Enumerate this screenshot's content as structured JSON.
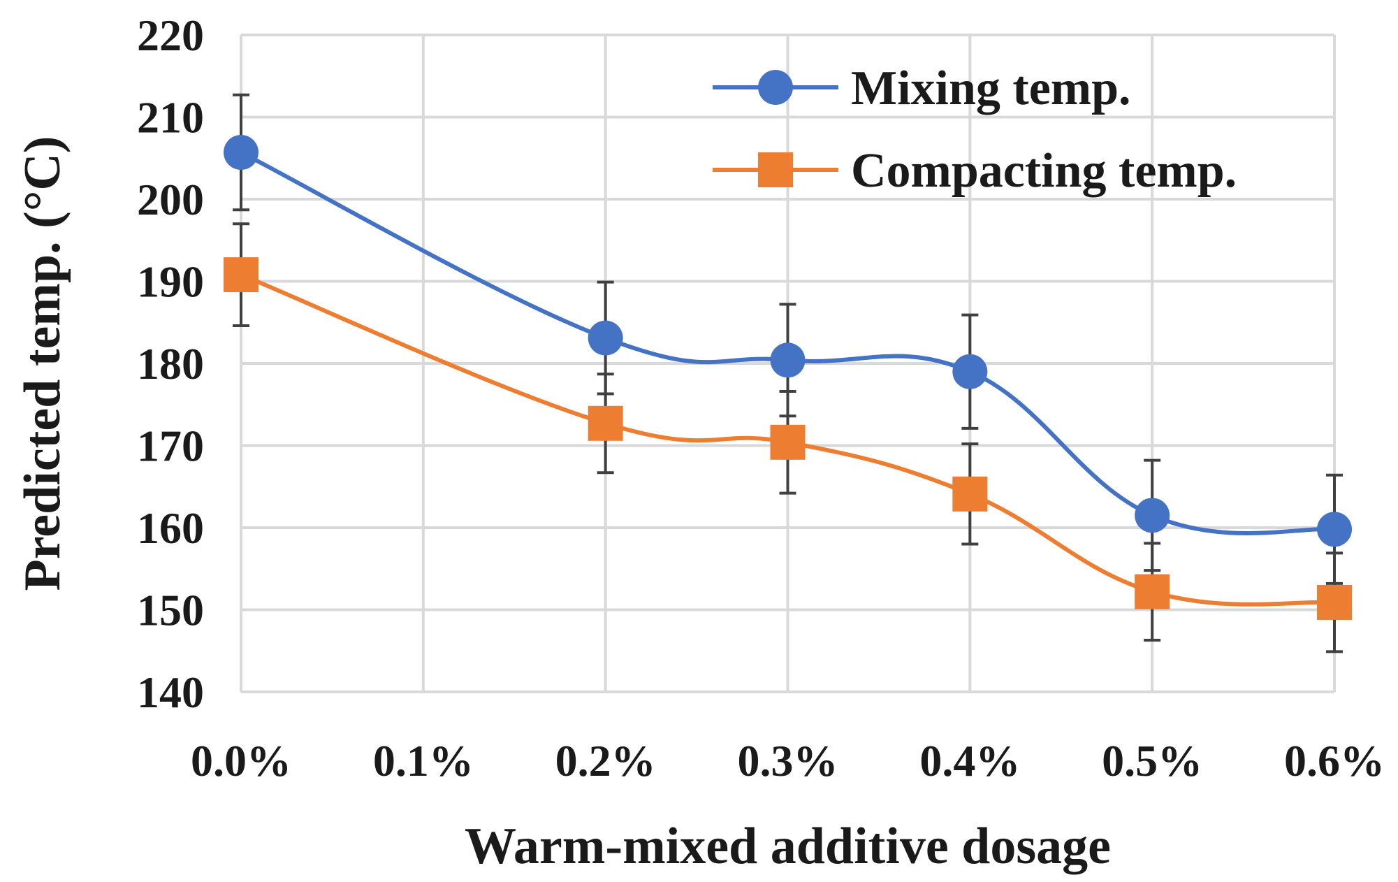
{
  "chart_data": {
    "type": "line",
    "title": "",
    "xlabel": "Warm-mixed additive dosage",
    "ylabel": "Predicted temp. (°C)",
    "categories": [
      "0.0%",
      "0.1%",
      "0.2%",
      "0.3%",
      "0.4%",
      "0.5%",
      "0.6%"
    ],
    "x": [
      0.0,
      0.1,
      0.2,
      0.3,
      0.4,
      0.5,
      0.6
    ],
    "xlim": [
      0.0,
      0.6
    ],
    "ylim": [
      140,
      220
    ],
    "yticks": [
      140,
      150,
      160,
      170,
      180,
      190,
      200,
      210,
      220
    ],
    "ytick_labels": [
      "140",
      "150",
      "160",
      "170",
      "180",
      "190",
      "200",
      "210",
      "220"
    ],
    "grid": true,
    "legend_position": "top-right",
    "series": [
      {
        "name": "Mixing temp.",
        "color": "#4472c4",
        "marker": "circle",
        "x": [
          0.0,
          0.2,
          0.3,
          0.4,
          0.5,
          0.6
        ],
        "values": [
          205.7,
          183.1,
          180.4,
          179.0,
          161.5,
          159.8
        ],
        "error": [
          7.0,
          6.8,
          6.8,
          6.9,
          6.7,
          6.6
        ]
      },
      {
        "name": "Compacting temp.",
        "color": "#ed7d31",
        "marker": "square",
        "x": [
          0.0,
          0.2,
          0.3,
          0.4,
          0.5,
          0.6
        ],
        "values": [
          190.8,
          172.7,
          170.4,
          164.1,
          152.2,
          150.9
        ],
        "error": [
          6.2,
          6.0,
          6.2,
          6.1,
          5.9,
          6.0
        ]
      }
    ]
  }
}
